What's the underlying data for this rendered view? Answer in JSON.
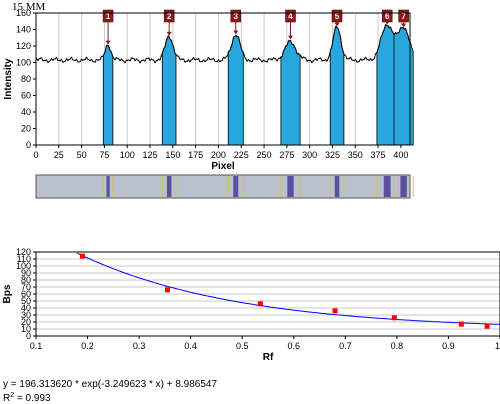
{
  "header": {
    "label": "15 MM"
  },
  "colors": {
    "peak_fill": "#29a7dc",
    "marker_box": "#8b1a1a",
    "marker_arrow": "#8b1a1a",
    "fit_line": "#0000ff",
    "fit_point": "#ff0000",
    "lane_bg": "#b9c2cc",
    "lane_line": "#d4c25a",
    "lane_band": "#3b2a8c"
  },
  "chart_data": [
    {
      "type": "line",
      "xlabel": "Pixel",
      "ylabel": "Intensity",
      "xlim": [
        0,
        410
      ],
      "ylim": [
        0,
        160
      ],
      "xticks": [
        0,
        25,
        50,
        75,
        100,
        125,
        150,
        175,
        200,
        225,
        250,
        275,
        300,
        325,
        350,
        375,
        400
      ],
      "yticks": [
        0,
        20,
        40,
        60,
        80,
        100,
        120,
        140,
        160
      ],
      "grid": "vertical",
      "baseline": 103,
      "peaks": [
        {
          "label": "1",
          "x": 79,
          "height": 122,
          "width": 7
        },
        {
          "label": "2",
          "x": 146,
          "height": 132,
          "width": 10
        },
        {
          "label": "3",
          "x": 219,
          "height": 134,
          "width": 11
        },
        {
          "label": "4",
          "x": 279,
          "height": 125,
          "width": 14
        },
        {
          "label": "5",
          "x": 330,
          "height": 143,
          "width": 10
        },
        {
          "label": "6",
          "x": 385,
          "height": 146,
          "width": 15
        },
        {
          "label": "7",
          "x": 403,
          "height": 143,
          "width": 14
        }
      ]
    },
    {
      "type": "scatter",
      "xlabel": "Rf",
      "ylabel": "Bps",
      "xlim": [
        0.1,
        1
      ],
      "ylim": [
        0,
        120
      ],
      "xticks": [
        "0.1",
        "0.2",
        "0.3",
        "0.4",
        "0.5",
        "0.6",
        "0.7",
        "0.8",
        "0.9",
        "1"
      ],
      "yticks": [
        "0",
        "10",
        "20",
        "30",
        "40",
        "50",
        "60",
        "70",
        "80",
        "90",
        "100",
        "110",
        "120"
      ],
      "grid": "horizontal",
      "points": [
        {
          "x": 0.19,
          "y": 114
        },
        {
          "x": 0.355,
          "y": 66
        },
        {
          "x": 0.535,
          "y": 46
        },
        {
          "x": 0.68,
          "y": 36
        },
        {
          "x": 0.795,
          "y": 26
        },
        {
          "x": 0.925,
          "y": 17
        },
        {
          "x": 0.975,
          "y": 14
        }
      ],
      "fit": {
        "a": 196.31362,
        "b": -3.249623,
        "c": 8.986547
      },
      "equation": "y = 196.313620 * exp(-3.249623 * x) + 8.986547",
      "r2_label": "R",
      "r2_sup": "2",
      "r2_value": " = 0.993"
    }
  ]
}
